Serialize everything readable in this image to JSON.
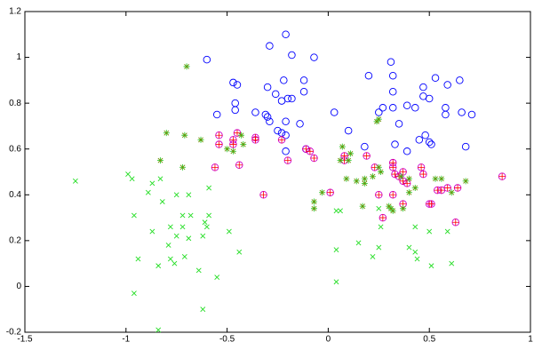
{
  "chart_data": {
    "type": "scatter",
    "xlim": [
      -1.5,
      1
    ],
    "xticks": [
      -1.5,
      -1,
      -0.5,
      0,
      0.5,
      1
    ],
    "ylim": [
      -0.2,
      1.2
    ],
    "yticks": [
      -0.2,
      0,
      0.2,
      0.4,
      0.6,
      0.8,
      1,
      1.2
    ],
    "series": [
      {
        "color": "#0000ff",
        "marker": "o",
        "x": [
          -0.6,
          -0.29,
          -0.21,
          -0.18,
          -0.07,
          -0.47,
          -0.45,
          -0.3,
          -0.22,
          -0.12,
          -0.26,
          -0.2,
          -0.18,
          -0.23,
          -0.12,
          -0.46,
          -0.46,
          -0.55,
          -0.36,
          -0.31,
          -0.3,
          -0.29,
          -0.21,
          -0.14,
          0.03,
          0.2,
          0.31,
          0.32,
          0.32,
          0.35,
          0.25,
          0.27,
          0.32,
          0.39,
          0.43,
          0.47,
          0.47,
          0.5,
          0.53,
          0.59,
          0.58,
          0.58,
          0.65,
          0.66,
          0.71,
          0.48,
          0.5,
          0.51,
          0.45,
          0.39,
          0.68,
          0.33,
          0.18,
          0.1,
          -0.23,
          -0.21,
          -0.25,
          -0.21,
          -0.11
        ],
        "values": [
          0.99,
          1.05,
          1.1,
          1.01,
          1.0,
          0.89,
          0.88,
          0.87,
          0.9,
          0.9,
          0.84,
          0.82,
          0.82,
          0.81,
          0.85,
          0.8,
          0.77,
          0.75,
          0.76,
          0.75,
          0.74,
          0.72,
          0.72,
          0.71,
          0.76,
          0.92,
          0.98,
          0.92,
          0.85,
          0.71,
          0.76,
          0.78,
          0.78,
          0.79,
          0.78,
          0.87,
          0.83,
          0.82,
          0.91,
          0.88,
          0.75,
          0.78,
          0.9,
          0.76,
          0.75,
          0.66,
          0.63,
          0.62,
          0.64,
          0.59,
          0.61,
          0.62,
          0.61,
          0.68,
          0.67,
          0.66,
          0.68,
          0.59,
          0.6
        ]
      },
      {
        "color": "#cc00cc",
        "marker": "o+",
        "x": [
          -0.54,
          -0.54,
          -0.45,
          -0.47,
          -0.47,
          -0.36,
          -0.36,
          -0.56,
          -0.44,
          -0.23,
          -0.2,
          -0.11,
          -0.09,
          -0.07,
          0.08,
          0.08,
          0.19,
          0.32,
          0.32,
          0.33,
          0.23,
          0.37,
          0.35,
          0.37,
          0.39,
          0.46,
          0.47,
          0.54,
          0.56,
          0.59,
          0.64,
          0.5,
          0.51,
          0.32,
          0.25,
          0.27,
          0.37,
          -0.32,
          0.01,
          0.63,
          0.86
        ],
        "values": [
          0.66,
          0.62,
          0.67,
          0.64,
          0.62,
          0.65,
          0.64,
          0.52,
          0.53,
          0.64,
          0.55,
          0.6,
          0.59,
          0.56,
          0.57,
          0.55,
          0.57,
          0.54,
          0.52,
          0.49,
          0.52,
          0.5,
          0.48,
          0.46,
          0.45,
          0.52,
          0.49,
          0.42,
          0.42,
          0.43,
          0.43,
          0.36,
          0.36,
          0.4,
          0.4,
          0.3,
          0.36,
          0.4,
          0.41,
          0.28,
          0.48
        ]
      },
      {
        "color": "#6b8e00",
        "marker": "*",
        "x": [
          -0.7,
          -0.8,
          -0.71,
          -0.63,
          -0.83,
          -0.72,
          -0.5,
          -0.47,
          -0.43,
          -0.42,
          0.24,
          0.25,
          0.07,
          0.06,
          0.11,
          0.1,
          0.09,
          0.14,
          0.18,
          0.18,
          0.22,
          0.25,
          0.26,
          0.36,
          0.4,
          0.4,
          0.43,
          0.53,
          0.56,
          0.61,
          0.68,
          -0.07,
          -0.03,
          -0.07,
          0.17,
          0.3,
          0.31,
          0.32,
          0.37
        ],
        "values": [
          0.96,
          0.67,
          0.66,
          0.64,
          0.55,
          0.52,
          0.6,
          0.59,
          0.66,
          0.62,
          0.72,
          0.73,
          0.61,
          0.55,
          0.58,
          0.55,
          0.47,
          0.46,
          0.45,
          0.47,
          0.48,
          0.52,
          0.5,
          0.48,
          0.47,
          0.41,
          0.43,
          0.47,
          0.47,
          0.41,
          0.46,
          0.37,
          0.41,
          0.34,
          0.35,
          0.35,
          0.34,
          0.33,
          0.34
        ]
      },
      {
        "color": "#22dd22",
        "marker": "x",
        "x": [
          -1.25,
          -0.99,
          -0.97,
          -0.89,
          -0.87,
          -0.83,
          -0.82,
          -0.75,
          -0.69,
          -0.59,
          -0.96,
          -0.72,
          -0.68,
          -0.59,
          -0.61,
          -0.6,
          -0.72,
          -0.78,
          -0.75,
          -0.79,
          -0.69,
          -0.62,
          -0.87,
          -0.49,
          -0.76,
          -0.71,
          -0.84,
          -0.78,
          -0.94,
          -0.64,
          -0.55,
          -0.44,
          -0.96,
          -0.84,
          -0.62,
          0.06,
          0.04,
          0.25,
          0.26,
          0.43,
          0.5,
          0.4,
          0.59,
          0.04,
          0.15,
          0.22,
          0.43,
          0.44,
          0.51,
          0.61,
          0.04,
          0.25
        ],
        "values": [
          0.46,
          0.49,
          0.47,
          0.41,
          0.45,
          0.47,
          0.37,
          0.4,
          0.4,
          0.43,
          0.31,
          0.31,
          0.31,
          0.31,
          0.28,
          0.26,
          0.26,
          0.26,
          0.22,
          0.18,
          0.21,
          0.22,
          0.24,
          0.24,
          0.1,
          0.13,
          0.09,
          0.12,
          0.12,
          0.07,
          0.04,
          0.15,
          -0.03,
          -0.19,
          -0.1,
          0.33,
          0.33,
          0.34,
          0.26,
          0.26,
          0.24,
          0.17,
          0.24,
          0.16,
          0.19,
          0.13,
          0.15,
          0.12,
          0.09,
          0.1,
          0.02,
          0.17
        ]
      }
    ]
  }
}
